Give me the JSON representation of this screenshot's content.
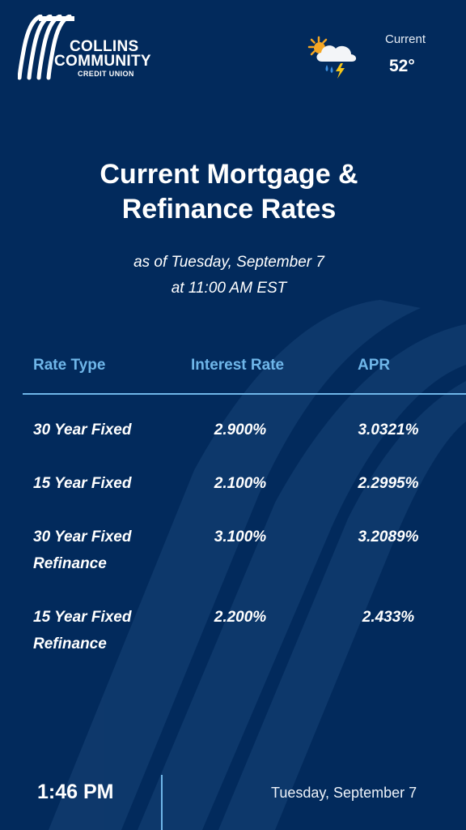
{
  "brand": {
    "line1": "COLLINS",
    "line2": "COMMUNITY",
    "line3": "CREDIT UNION"
  },
  "weather": {
    "icon": "partly-cloudy-storm-icon",
    "label": "Current",
    "temperature": "52°"
  },
  "title": {
    "line1": "Current Mortgage &",
    "line2": "Refinance Rates"
  },
  "subtitle": {
    "line1": "as of Tuesday, September 7",
    "line2": "at 11:00 AM EST"
  },
  "table": {
    "headers": [
      "Rate Type",
      "Interest Rate",
      "APR"
    ],
    "rows": [
      {
        "type_line1": "30 Year Fixed",
        "type_line2": "",
        "rate": "2.900%",
        "apr": "3.0321%"
      },
      {
        "type_line1": "15 Year Fixed",
        "type_line2": "",
        "rate": "2.100%",
        "apr": "2.2995%"
      },
      {
        "type_line1": "30 Year Fixed",
        "type_line2": "Refinance",
        "rate": "3.100%",
        "apr": "3.2089%"
      },
      {
        "type_line1": "15 Year Fixed",
        "type_line2": "Refinance",
        "rate": "2.200%",
        "apr": "2.433%"
      }
    ]
  },
  "footer": {
    "time": "1:46 PM",
    "date": "Tuesday, September 7"
  },
  "colors": {
    "background": "#022a5c",
    "accent": "#6fb6e9",
    "text": "#ffffff"
  }
}
